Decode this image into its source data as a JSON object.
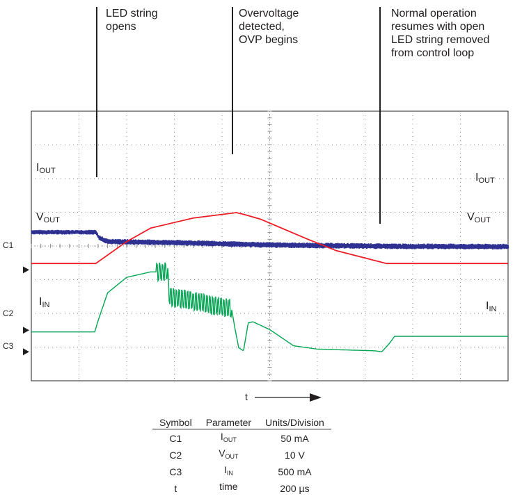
{
  "annotations": [
    {
      "text": "LED string\nopens"
    },
    {
      "text": "Overvoltage\ndetected,\nOVP begins"
    },
    {
      "text": "Normal operation\nresumes with open\nLED string removed\nfrom control loop"
    }
  ],
  "trace_labels": {
    "iout": {
      "main": "I",
      "sub": "OUT"
    },
    "vout": {
      "main": "V",
      "sub": "OUT"
    },
    "iin": {
      "main": "I",
      "sub": "IN"
    }
  },
  "channel_markers": [
    "C1",
    "C2",
    "C3"
  ],
  "time_axis_label": "t",
  "legend": {
    "headers": [
      "Symbol",
      "Parameter",
      "Units/Division"
    ],
    "rows": [
      {
        "symbol": "C1",
        "param_main": "I",
        "param_sub": "OUT",
        "units": "50 mA"
      },
      {
        "symbol": "C2",
        "param_main": "V",
        "param_sub": "OUT",
        "units": "10 V"
      },
      {
        "symbol": "C3",
        "param_main": "I",
        "param_sub": "IN",
        "units": "500 mA"
      },
      {
        "symbol": "t",
        "param_main": "time",
        "param_sub": "",
        "units": "200 µs"
      }
    ]
  },
  "colors": {
    "iout": "#2e3192",
    "vout": "#ed1c24",
    "iin": "#00a651",
    "grid": "#231f20"
  },
  "chart_data": {
    "type": "line",
    "x_divisions": 10,
    "y_divisions": 8,
    "grid": true,
    "x_unit_per_division": "200 µs",
    "series": [
      {
        "name": "IOUT",
        "color": "#2e3192",
        "noisy": true,
        "points": [
          [
            0,
            4.41
          ],
          [
            1.35,
            4.41
          ],
          [
            1.42,
            4.24
          ],
          [
            1.6,
            4.13
          ],
          [
            3,
            4.1
          ],
          [
            5,
            4.03
          ],
          [
            7.5,
            3.99
          ],
          [
            10,
            3.98
          ]
        ]
      },
      {
        "name": "VOUT",
        "color": "#ed1c24",
        "noisy": false,
        "points": [
          [
            0,
            3.48
          ],
          [
            1.35,
            3.48
          ],
          [
            2.0,
            4.13
          ],
          [
            2.5,
            4.53
          ],
          [
            3.4,
            4.83
          ],
          [
            4.3,
            4.99
          ],
          [
            4.45,
            4.94
          ],
          [
            4.8,
            4.8
          ],
          [
            5.8,
            4.2
          ],
          [
            6.4,
            3.86
          ],
          [
            7.45,
            3.48
          ],
          [
            10,
            3.48
          ]
        ]
      },
      {
        "name": "IIN",
        "color": "#00a651",
        "noisy": false,
        "points": [
          [
            0,
            1.45
          ],
          [
            1.33,
            1.45
          ],
          [
            1.4,
            1.78
          ],
          [
            1.6,
            2.61
          ],
          [
            2.0,
            3.07
          ],
          [
            2.5,
            3.23
          ],
          [
            2.85,
            3.23
          ],
          [
            2.9,
            2.5
          ],
          [
            4.2,
            2.14
          ],
          [
            4.27,
            1.56
          ],
          [
            4.35,
            0.98
          ],
          [
            4.45,
            0.89
          ],
          [
            4.55,
            1.72
          ],
          [
            4.65,
            1.75
          ],
          [
            5.0,
            1.52
          ],
          [
            5.5,
            1.04
          ],
          [
            6.0,
            0.94
          ],
          [
            7.2,
            0.89
          ],
          [
            7.35,
            0.86
          ],
          [
            7.5,
            1.09
          ],
          [
            7.62,
            1.32
          ],
          [
            10,
            1.32
          ]
        ]
      }
    ],
    "channel_levels": {
      "C1": 3.29,
      "C2": 1.5,
      "C3": 0.86
    }
  }
}
